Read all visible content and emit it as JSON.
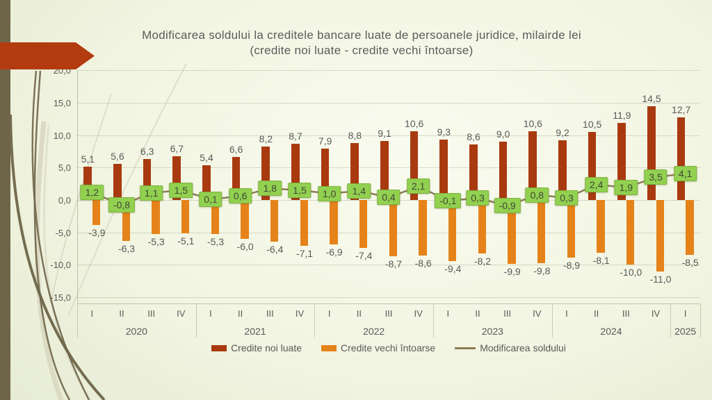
{
  "slide": {
    "title_line1": "Modificarea soldului la creditele bancare luate de persoanele juridice, milairde lei",
    "title_line2": "(credite noi luate - credite vechi întoarse)"
  },
  "colors": {
    "credite_noi": "#a93a10",
    "credite_vechi": "#e5831a",
    "modificare_bg": "#92d050",
    "modificare_border": "#7fb33e",
    "modificare_text": "#3e4636",
    "linie": "#8c7b55",
    "text": "#595959",
    "accent_arrow": "#b23c10",
    "sidebar": "#6e6549",
    "curve_dark": "#6f6549",
    "curve_light": "#d9d7c0"
  },
  "y_axis": {
    "values": [
      20,
      15,
      10,
      5,
      0,
      -5,
      -10,
      -15
    ]
  },
  "chart_data": {
    "type": "bar",
    "title": "Modificarea soldului la creditele bancare luate de persoanele juridice, milairde lei (credite noi luate - credite vechi întoarse)",
    "quarter_pattern": [
      "I",
      "II",
      "III",
      "IV"
    ],
    "year_groups": [
      {
        "label": "2020",
        "quarters": 4
      },
      {
        "label": "2021",
        "quarters": 4
      },
      {
        "label": "2022",
        "quarters": 4
      },
      {
        "label": "2023",
        "quarters": 4
      },
      {
        "label": "2024",
        "quarters": 4
      },
      {
        "label": "2025",
        "quarters": 1
      }
    ],
    "ylim": [
      -15,
      20
    ],
    "ytick_step": 5,
    "grid": "horizontal",
    "legend_position": "bottom",
    "series": [
      {
        "name": "Credite noi luate",
        "type": "bar",
        "values": [
          5.1,
          5.6,
          6.3,
          6.7,
          5.4,
          6.6,
          8.2,
          8.7,
          7.9,
          8.8,
          9.1,
          10.6,
          9.3,
          8.6,
          9.0,
          10.6,
          9.2,
          10.5,
          11.9,
          14.5,
          12.7
        ]
      },
      {
        "name": "Credite vechi întoarse",
        "type": "bar",
        "values": [
          -3.9,
          -6.3,
          -5.3,
          -5.1,
          -5.3,
          -6.0,
          -6.4,
          -7.1,
          -6.9,
          -7.4,
          -8.7,
          -8.6,
          -9.4,
          -8.2,
          -9.9,
          -9.8,
          -8.9,
          -8.1,
          -10.0,
          -11.0,
          -8.5
        ]
      },
      {
        "name": "Modificarea soldului",
        "type": "line",
        "values": [
          1.2,
          -0.8,
          1.1,
          1.5,
          0.1,
          0.6,
          1.8,
          1.5,
          1.0,
          1.4,
          0.4,
          2.1,
          -0.1,
          0.3,
          -0.9,
          0.8,
          0.3,
          2.4,
          1.9,
          3.5,
          4.1
        ]
      }
    ]
  },
  "legend": {
    "items": [
      {
        "label": "Credite noi luate"
      },
      {
        "label": "Credite vechi întoarse"
      },
      {
        "label": "Modificarea soldului"
      }
    ]
  }
}
